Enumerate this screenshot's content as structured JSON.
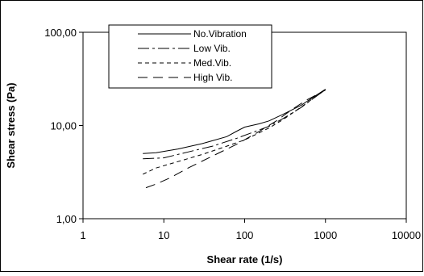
{
  "chart_data": {
    "type": "line",
    "xlabel": "Shear rate (1/s)",
    "ylabel": "Shear stress (Pa)",
    "x_scale": "log",
    "y_scale": "log",
    "xlim": [
      1,
      10000
    ],
    "ylim": [
      1,
      100
    ],
    "x_ticks": [
      1,
      10,
      100,
      1000,
      10000
    ],
    "x_tick_labels": [
      "1",
      "10",
      "100",
      "1000",
      "10000"
    ],
    "y_ticks": [
      1,
      10,
      100
    ],
    "y_tick_labels": [
      "1,00",
      "10,00",
      "100,00"
    ],
    "grid": false,
    "legend_position": "top-left",
    "series": [
      {
        "name": "No.Vibration",
        "dash": "solid",
        "x": [
          5.5,
          8,
          15,
          30,
          60,
          80,
          100,
          150,
          200,
          300,
          500,
          700,
          1000
        ],
        "y": [
          5.0,
          5.1,
          5.6,
          6.4,
          7.6,
          8.7,
          9.6,
          10.4,
          11.2,
          13.2,
          16.5,
          20.0,
          24.5
        ]
      },
      {
        "name": "Low Vib.",
        "dash": "long-short",
        "x": [
          5.5,
          10,
          20,
          40,
          80,
          120,
          200,
          300,
          500,
          700,
          1000
        ],
        "y": [
          4.4,
          4.5,
          5.2,
          6.0,
          7.3,
          8.3,
          9.8,
          11.9,
          15.6,
          19.4,
          24.3
        ]
      },
      {
        "name": "Med.Vib.",
        "dash": "short-dash",
        "x": [
          5.5,
          8,
          15,
          30,
          60,
          100,
          200,
          300,
          500,
          700,
          1000
        ],
        "y": [
          3.0,
          3.5,
          4.1,
          4.9,
          6.0,
          7.0,
          9.4,
          11.6,
          15.8,
          19.5,
          24.2
        ]
      },
      {
        "name": "High Vib.",
        "dash": "long-dash",
        "x": [
          6,
          8,
          12,
          20,
          40,
          80,
          150,
          250,
          400,
          600,
          1000
        ],
        "y": [
          2.15,
          2.35,
          2.75,
          3.5,
          4.7,
          6.3,
          8.6,
          11.3,
          15.2,
          19.0,
          24.0
        ]
      }
    ]
  }
}
